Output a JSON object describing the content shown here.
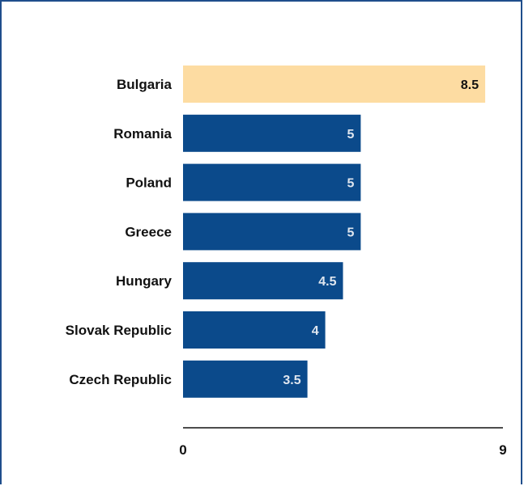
{
  "chart_data": {
    "type": "bar",
    "orientation": "horizontal",
    "categories": [
      "Bulgaria",
      "Romania",
      "Poland",
      "Greece",
      "Hungary",
      "Slovak Republic",
      "Czech Republic"
    ],
    "values": [
      8.5,
      5,
      5,
      5,
      4.5,
      4,
      3.5
    ],
    "value_labels": [
      "8.5",
      "5",
      "5",
      "5",
      "4.5",
      "4",
      "3.5"
    ],
    "xlim": [
      0,
      9
    ],
    "x_ticks": [
      "0",
      "9"
    ],
    "title": "",
    "xlabel": "",
    "ylabel": "",
    "grid": false,
    "highlight_category": "Bulgaria",
    "colors": {
      "bar": "#0b4a8b",
      "highlight_bar": "#fddca2",
      "bar_label": "#dfe6ef",
      "highlight_label": "#111111",
      "axis": "#111111",
      "frame": "#1f4e8c"
    }
  }
}
